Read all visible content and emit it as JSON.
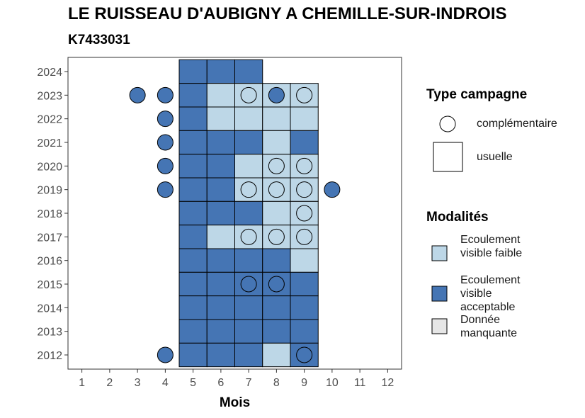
{
  "chart_data": {
    "type": "heatmap",
    "title": "LE RUISSEAU D'AUBIGNY A CHEMILLE-SUR-INDROIS",
    "subtitle": "K7433031",
    "xlabel": "Mois",
    "ylabel": "",
    "x_ticks": [
      1,
      2,
      3,
      4,
      5,
      6,
      7,
      8,
      9,
      10,
      11,
      12
    ],
    "y_ticks": [
      2012,
      2013,
      2014,
      2015,
      2016,
      2017,
      2018,
      2019,
      2020,
      2021,
      2022,
      2023,
      2024
    ],
    "xlim": [
      0.5,
      12.5
    ],
    "ylim": [
      2011.4,
      2024.6
    ],
    "grid": false,
    "legend_placement": "right",
    "colors": {
      "Ecoulement visible faible": "#bdd7e7",
      "Ecoulement visible acceptable": "#4575b4",
      "Donnée manquante": "#e6e6e6"
    },
    "tiles": [
      {
        "year": 2024,
        "month": 5,
        "modalite": "Ecoulement visible acceptable"
      },
      {
        "year": 2024,
        "month": 6,
        "modalite": "Ecoulement visible acceptable"
      },
      {
        "year": 2024,
        "month": 7,
        "modalite": "Ecoulement visible acceptable"
      },
      {
        "year": 2023,
        "month": 5,
        "modalite": "Ecoulement visible acceptable"
      },
      {
        "year": 2023,
        "month": 6,
        "modalite": "Ecoulement visible faible"
      },
      {
        "year": 2023,
        "month": 7,
        "modalite": "Ecoulement visible faible"
      },
      {
        "year": 2023,
        "month": 8,
        "modalite": "Ecoulement visible faible"
      },
      {
        "year": 2023,
        "month": 9,
        "modalite": "Ecoulement visible faible"
      },
      {
        "year": 2022,
        "month": 5,
        "modalite": "Ecoulement visible acceptable"
      },
      {
        "year": 2022,
        "month": 6,
        "modalite": "Ecoulement visible faible"
      },
      {
        "year": 2022,
        "month": 7,
        "modalite": "Ecoulement visible faible"
      },
      {
        "year": 2022,
        "month": 8,
        "modalite": "Ecoulement visible faible"
      },
      {
        "year": 2022,
        "month": 9,
        "modalite": "Ecoulement visible faible"
      },
      {
        "year": 2021,
        "month": 5,
        "modalite": "Ecoulement visible acceptable"
      },
      {
        "year": 2021,
        "month": 6,
        "modalite": "Ecoulement visible acceptable"
      },
      {
        "year": 2021,
        "month": 7,
        "modalite": "Ecoulement visible acceptable"
      },
      {
        "year": 2021,
        "month": 8,
        "modalite": "Ecoulement visible faible"
      },
      {
        "year": 2021,
        "month": 9,
        "modalite": "Ecoulement visible acceptable"
      },
      {
        "year": 2020,
        "month": 5,
        "modalite": "Ecoulement visible acceptable"
      },
      {
        "year": 2020,
        "month": 6,
        "modalite": "Ecoulement visible acceptable"
      },
      {
        "year": 2020,
        "month": 7,
        "modalite": "Ecoulement visible faible"
      },
      {
        "year": 2020,
        "month": 8,
        "modalite": "Ecoulement visible faible"
      },
      {
        "year": 2020,
        "month": 9,
        "modalite": "Ecoulement visible faible"
      },
      {
        "year": 2019,
        "month": 5,
        "modalite": "Ecoulement visible acceptable"
      },
      {
        "year": 2019,
        "month": 6,
        "modalite": "Ecoulement visible acceptable"
      },
      {
        "year": 2019,
        "month": 7,
        "modalite": "Ecoulement visible faible"
      },
      {
        "year": 2019,
        "month": 8,
        "modalite": "Ecoulement visible faible"
      },
      {
        "year": 2019,
        "month": 9,
        "modalite": "Ecoulement visible faible"
      },
      {
        "year": 2018,
        "month": 5,
        "modalite": "Ecoulement visible acceptable"
      },
      {
        "year": 2018,
        "month": 6,
        "modalite": "Ecoulement visible acceptable"
      },
      {
        "year": 2018,
        "month": 7,
        "modalite": "Ecoulement visible acceptable"
      },
      {
        "year": 2018,
        "month": 8,
        "modalite": "Ecoulement visible faible"
      },
      {
        "year": 2018,
        "month": 9,
        "modalite": "Ecoulement visible faible"
      },
      {
        "year": 2017,
        "month": 5,
        "modalite": "Ecoulement visible acceptable"
      },
      {
        "year": 2017,
        "month": 6,
        "modalite": "Ecoulement visible faible"
      },
      {
        "year": 2017,
        "month": 7,
        "modalite": "Ecoulement visible faible"
      },
      {
        "year": 2017,
        "month": 8,
        "modalite": "Ecoulement visible faible"
      },
      {
        "year": 2017,
        "month": 9,
        "modalite": "Ecoulement visible faible"
      },
      {
        "year": 2016,
        "month": 5,
        "modalite": "Ecoulement visible acceptable"
      },
      {
        "year": 2016,
        "month": 6,
        "modalite": "Ecoulement visible acceptable"
      },
      {
        "year": 2016,
        "month": 7,
        "modalite": "Ecoulement visible acceptable"
      },
      {
        "year": 2016,
        "month": 8,
        "modalite": "Ecoulement visible acceptable"
      },
      {
        "year": 2016,
        "month": 9,
        "modalite": "Ecoulement visible faible"
      },
      {
        "year": 2015,
        "month": 5,
        "modalite": "Ecoulement visible acceptable"
      },
      {
        "year": 2015,
        "month": 6,
        "modalite": "Ecoulement visible acceptable"
      },
      {
        "year": 2015,
        "month": 7,
        "modalite": "Ecoulement visible acceptable"
      },
      {
        "year": 2015,
        "month": 8,
        "modalite": "Ecoulement visible acceptable"
      },
      {
        "year": 2015,
        "month": 9,
        "modalite": "Ecoulement visible acceptable"
      },
      {
        "year": 2014,
        "month": 5,
        "modalite": "Ecoulement visible acceptable"
      },
      {
        "year": 2014,
        "month": 6,
        "modalite": "Ecoulement visible acceptable"
      },
      {
        "year": 2014,
        "month": 7,
        "modalite": "Ecoulement visible acceptable"
      },
      {
        "year": 2014,
        "month": 8,
        "modalite": "Ecoulement visible acceptable"
      },
      {
        "year": 2014,
        "month": 9,
        "modalite": "Ecoulement visible acceptable"
      },
      {
        "year": 2013,
        "month": 5,
        "modalite": "Ecoulement visible acceptable"
      },
      {
        "year": 2013,
        "month": 6,
        "modalite": "Ecoulement visible acceptable"
      },
      {
        "year": 2013,
        "month": 7,
        "modalite": "Ecoulement visible acceptable"
      },
      {
        "year": 2013,
        "month": 8,
        "modalite": "Ecoulement visible acceptable"
      },
      {
        "year": 2013,
        "month": 9,
        "modalite": "Ecoulement visible acceptable"
      },
      {
        "year": 2012,
        "month": 5,
        "modalite": "Ecoulement visible acceptable"
      },
      {
        "year": 2012,
        "month": 6,
        "modalite": "Ecoulement visible acceptable"
      },
      {
        "year": 2012,
        "month": 7,
        "modalite": "Ecoulement visible acceptable"
      },
      {
        "year": 2012,
        "month": 8,
        "modalite": "Ecoulement visible faible"
      },
      {
        "year": 2012,
        "month": 9,
        "modalite": "Ecoulement visible acceptable"
      }
    ],
    "points": [
      {
        "year": 2023,
        "month": 3,
        "modalite": "Ecoulement visible acceptable"
      },
      {
        "year": 2023,
        "month": 4,
        "modalite": "Ecoulement visible acceptable"
      },
      {
        "year": 2023,
        "month": 7,
        "modalite": "Ecoulement visible faible"
      },
      {
        "year": 2023,
        "month": 8,
        "modalite": "Ecoulement visible acceptable"
      },
      {
        "year": 2023,
        "month": 9,
        "modalite": "Ecoulement visible faible"
      },
      {
        "year": 2022,
        "month": 4,
        "modalite": "Ecoulement visible acceptable"
      },
      {
        "year": 2021,
        "month": 4,
        "modalite": "Ecoulement visible acceptable"
      },
      {
        "year": 2020,
        "month": 4,
        "modalite": "Ecoulement visible acceptable"
      },
      {
        "year": 2020,
        "month": 8,
        "modalite": "Ecoulement visible faible"
      },
      {
        "year": 2020,
        "month": 9,
        "modalite": "Ecoulement visible faible"
      },
      {
        "year": 2019,
        "month": 4,
        "modalite": "Ecoulement visible acceptable"
      },
      {
        "year": 2019,
        "month": 7,
        "modalite": "Ecoulement visible faible"
      },
      {
        "year": 2019,
        "month": 8,
        "modalite": "Ecoulement visible faible"
      },
      {
        "year": 2019,
        "month": 9,
        "modalite": "Ecoulement visible faible"
      },
      {
        "year": 2019,
        "month": 10,
        "modalite": "Ecoulement visible acceptable"
      },
      {
        "year": 2018,
        "month": 9,
        "modalite": "Ecoulement visible faible"
      },
      {
        "year": 2017,
        "month": 7,
        "modalite": "Ecoulement visible faible"
      },
      {
        "year": 2017,
        "month": 8,
        "modalite": "Ecoulement visible faible"
      },
      {
        "year": 2017,
        "month": 9,
        "modalite": "Ecoulement visible faible"
      },
      {
        "year": 2015,
        "month": 7,
        "modalite": "Ecoulement visible acceptable"
      },
      {
        "year": 2015,
        "month": 8,
        "modalite": "Ecoulement visible acceptable"
      },
      {
        "year": 2012,
        "month": 4,
        "modalite": "Ecoulement visible acceptable"
      },
      {
        "year": 2012,
        "month": 9,
        "modalite": "Ecoulement visible acceptable"
      }
    ]
  },
  "legend": {
    "type_title": "Type campagne",
    "type_items": [
      {
        "label": "complémentaire",
        "shape": "circle-icon"
      },
      {
        "label": "usuelle",
        "shape": "square-icon"
      }
    ],
    "mod_title": "Modalités",
    "mod_items": [
      {
        "label": "Ecoulement visible faible",
        "color": "#bdd7e7"
      },
      {
        "label": "Ecoulement visible acceptable",
        "color": "#4575b4"
      },
      {
        "label": "Donnée manquante",
        "color": "#e6e6e6"
      }
    ]
  }
}
